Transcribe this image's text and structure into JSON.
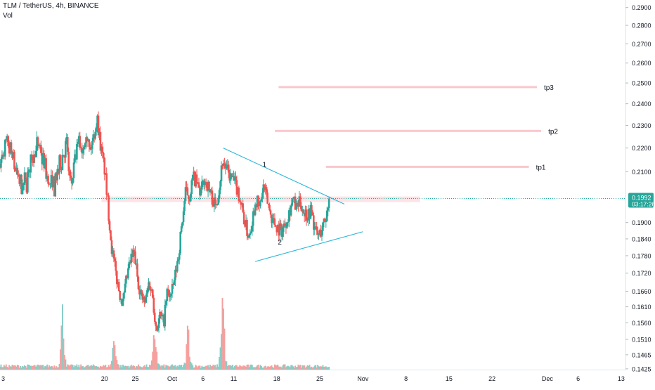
{
  "header": {
    "title": "TLM / TetherUS, 4h, BINANCE",
    "volume_label": "Vol"
  },
  "price_badge": {
    "price": "0.1992",
    "countdown": "03:17:26",
    "color": "#26a69a"
  },
  "colors": {
    "up": "#26a69a",
    "down": "#ef5350",
    "trendline": "#29b6d8",
    "target": "#f8b9c0",
    "zone": "#fcd9de",
    "last_price_line": "#26a69a"
  },
  "chart_data": {
    "type": "candlestick",
    "symbol": "TLM / TetherUS",
    "interval": "4h",
    "exchange": "BINANCE",
    "price_axis": {
      "ticks": [
        0.29,
        0.28,
        0.27,
        0.26,
        0.25,
        0.24,
        0.23,
        0.22,
        0.21,
        0.19,
        0.184,
        0.178,
        0.172,
        0.166,
        0.161,
        0.156,
        0.151,
        0.1465,
        0.1425
      ],
      "scale": "log",
      "range": [
        0.1415,
        0.2935
      ]
    },
    "time_axis": {
      "labels": [
        {
          "label": "3",
          "day": 0
        },
        {
          "label": "20",
          "day": 17
        },
        {
          "label": "25",
          "day": 22
        },
        {
          "label": "Oct",
          "day": 28
        },
        {
          "label": "6",
          "day": 33
        },
        {
          "label": "11",
          "day": 38
        },
        {
          "label": "18",
          "day": 45
        },
        {
          "label": "25",
          "day": 52
        },
        {
          "label": "Nov",
          "day": 59
        },
        {
          "label": "8",
          "day": 66
        },
        {
          "label": "15",
          "day": 73
        },
        {
          "label": "22",
          "day": 80
        },
        {
          "label": "Dec",
          "day": 89
        },
        {
          "label": "6",
          "day": 94
        },
        {
          "label": "13",
          "day": 101
        }
      ],
      "range": [
        0,
        101.7
      ]
    },
    "price_path": [
      [
        11.0,
        0.212
      ],
      [
        11.6,
        0.204
      ],
      [
        12.2,
        0.215
      ],
      [
        12.8,
        0.223
      ],
      [
        13.4,
        0.219
      ],
      [
        14.0,
        0.228
      ],
      [
        14.6,
        0.218
      ],
      [
        15.2,
        0.225
      ],
      [
        15.8,
        0.233
      ],
      [
        16.4,
        0.22
      ],
      [
        17.0,
        0.211
      ],
      [
        17.6,
        0.195
      ],
      [
        18.2,
        0.18
      ],
      [
        18.8,
        0.172
      ],
      [
        19.4,
        0.166
      ],
      [
        20.0,
        0.162
      ],
      [
        20.6,
        0.17
      ],
      [
        21.2,
        0.176
      ],
      [
        21.8,
        0.179
      ],
      [
        22.4,
        0.17
      ],
      [
        23.0,
        0.164
      ],
      [
        23.6,
        0.162
      ],
      [
        24.2,
        0.169
      ],
      [
        24.8,
        0.165
      ],
      [
        25.4,
        0.154
      ],
      [
        26.0,
        0.158
      ],
      [
        26.6,
        0.156
      ],
      [
        27.2,
        0.166
      ],
      [
        27.8,
        0.164
      ],
      [
        28.4,
        0.17
      ],
      [
        29.0,
        0.178
      ],
      [
        29.6,
        0.19
      ],
      [
        30.2,
        0.202
      ],
      [
        30.8,
        0.2
      ],
      [
        31.4,
        0.208
      ],
      [
        32.0,
        0.205
      ],
      [
        32.6,
        0.201
      ],
      [
        33.2,
        0.207
      ],
      [
        33.8,
        0.204
      ],
      [
        34.4,
        0.2
      ],
      [
        35.0,
        0.196
      ],
      [
        35.6,
        0.203
      ],
      [
        36.2,
        0.215
      ],
      [
        36.8,
        0.211
      ],
      [
        37.4,
        0.208
      ],
      [
        38.0,
        0.206
      ],
      [
        38.6,
        0.203
      ],
      [
        39.2,
        0.197
      ],
      [
        39.8,
        0.19
      ],
      [
        40.4,
        0.185
      ],
      [
        41.0,
        0.191
      ],
      [
        41.6,
        0.199
      ],
      [
        42.2,
        0.195
      ],
      [
        42.8,
        0.204
      ],
      [
        43.4,
        0.199
      ],
      [
        44.0,
        0.193
      ],
      [
        44.6,
        0.19
      ],
      [
        45.2,
        0.188
      ],
      [
        45.8,
        0.187
      ],
      [
        46.4,
        0.19
      ],
      [
        47.0,
        0.194
      ],
      [
        47.6,
        0.199
      ],
      [
        48.2,
        0.195
      ],
      [
        48.8,
        0.198
      ],
      [
        49.4,
        0.194
      ],
      [
        50.0,
        0.193
      ],
      [
        50.6,
        0.195
      ],
      [
        51.2,
        0.187
      ],
      [
        51.8,
        0.185
      ],
      [
        52.4,
        0.188
      ],
      [
        53.0,
        0.192
      ],
      [
        53.6,
        0.1992
      ]
    ],
    "volume": {
      "range": [
        0,
        1
      ],
      "peaks": [
        {
          "day": 10.2,
          "value": 0.65
        },
        {
          "day": 18.6,
          "value": 0.38
        },
        {
          "day": 25.2,
          "value": 0.42
        },
        {
          "day": 30.6,
          "value": 0.45
        },
        {
          "day": 36.2,
          "value": 0.9
        }
      ]
    },
    "last_price": 0.1992,
    "trendlines": [
      {
        "name": "descending",
        "from": {
          "day": 36.3,
          "price": 0.22
        },
        "to": {
          "day": 56.0,
          "price": 0.197
        }
      },
      {
        "name": "ascending",
        "from": {
          "day": 41.5,
          "price": 0.176
        },
        "to": {
          "day": 59.0,
          "price": 0.1866
        }
      }
    ],
    "zone": {
      "from_day": 16.5,
      "to_day": 68.3,
      "low": 0.1978,
      "high": 0.2
    },
    "targets": [
      {
        "label": "tp1",
        "price": 0.212,
        "from_day": 53.0,
        "to_day": 86.0
      },
      {
        "label": "tp2",
        "price": 0.2275,
        "from_day": 44.7,
        "to_day": 88.0
      },
      {
        "label": "tp3",
        "price": 0.248,
        "from_day": 45.3,
        "to_day": 87.3
      }
    ],
    "wave_labels": [
      {
        "label": "1",
        "day": 43.0,
        "price": 0.212
      },
      {
        "label": "2",
        "day": 45.5,
        "price": 0.182
      }
    ]
  }
}
